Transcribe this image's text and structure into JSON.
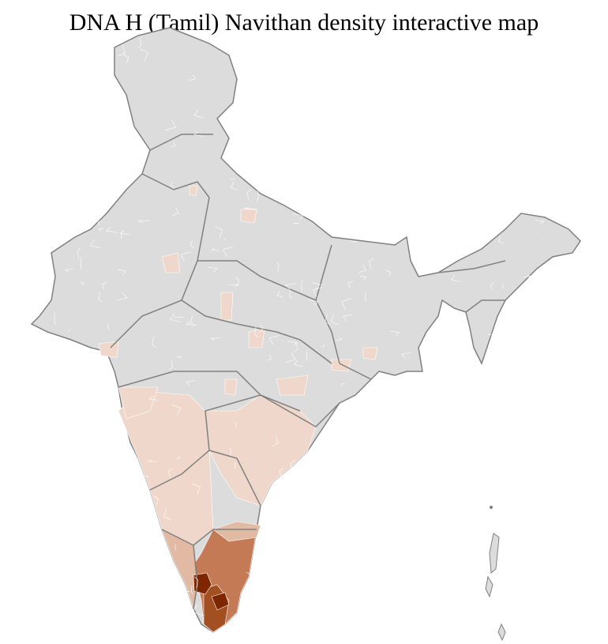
{
  "title": "DNA H (Tamil) Navithan density interactive map",
  "colors": {
    "no_data": "#dcdcdc",
    "border": "#808080",
    "district_border": "#ffffff",
    "low": "#efd8cb",
    "medium_low": "#e2b9a2",
    "medium": "#c47a55",
    "high": "#a24f22",
    "highest": "#7e2600"
  }
}
